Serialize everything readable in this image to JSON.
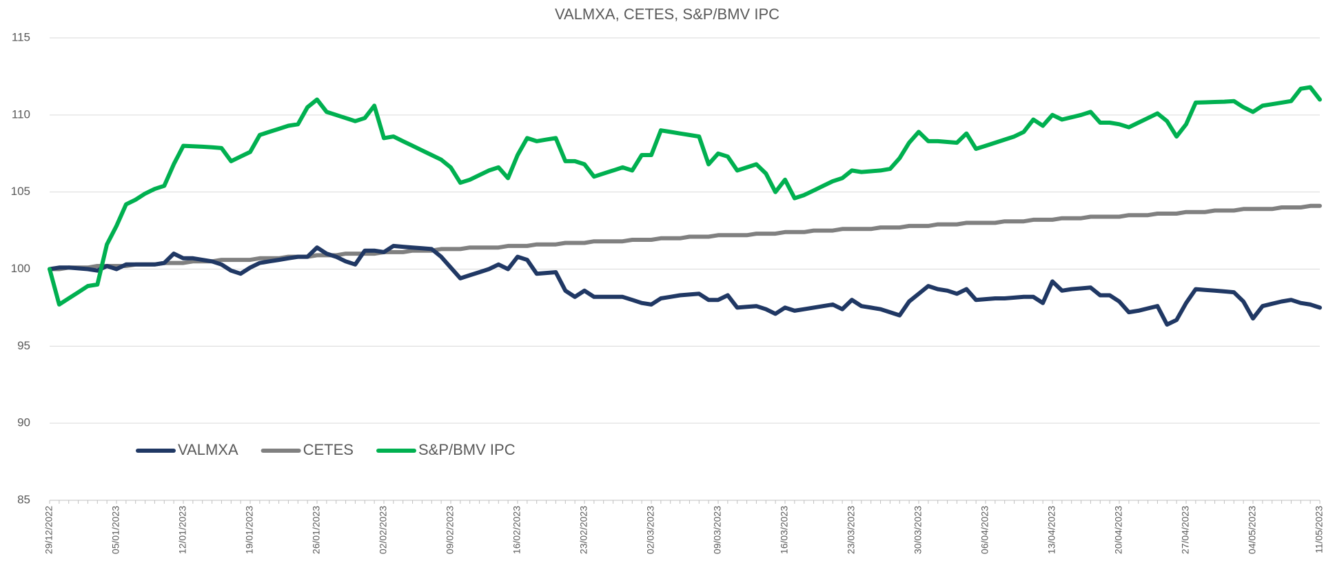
{
  "chart_data": {
    "type": "line",
    "title": "VALMXA, CETES, S&P/BMV IPC",
    "categories": [
      "29/12/2022",
      null,
      null,
      null,
      null,
      null,
      null,
      "05/01/2023",
      null,
      null,
      null,
      null,
      null,
      null,
      "12/01/2023",
      null,
      null,
      null,
      null,
      null,
      null,
      "19/01/2023",
      null,
      null,
      null,
      null,
      null,
      null,
      "26/01/2023",
      null,
      null,
      null,
      null,
      null,
      null,
      "02/02/2023",
      null,
      null,
      null,
      null,
      null,
      null,
      "09/02/2023",
      null,
      null,
      null,
      null,
      null,
      null,
      "16/02/2023",
      null,
      null,
      null,
      null,
      null,
      null,
      "23/02/2023",
      null,
      null,
      null,
      null,
      null,
      null,
      "02/03/2023",
      null,
      null,
      null,
      null,
      null,
      null,
      "09/03/2023",
      null,
      null,
      null,
      null,
      null,
      null,
      "16/03/2023",
      null,
      null,
      null,
      null,
      null,
      null,
      "23/03/2023",
      null,
      null,
      null,
      null,
      null,
      null,
      "30/03/2023",
      null,
      null,
      null,
      null,
      null,
      null,
      "06/04/2023",
      null,
      null,
      null,
      null,
      null,
      null,
      "13/04/2023",
      null,
      null,
      null,
      null,
      null,
      null,
      "20/04/2023",
      null,
      null,
      null,
      null,
      null,
      null,
      "27/04/2023",
      null,
      null,
      null,
      null,
      null,
      null,
      "04/05/2023",
      null,
      null,
      null,
      null,
      null,
      null,
      "11/05/2023"
    ],
    "series": [
      {
        "name": "VALMXA",
        "color": "#203864",
        "values": [
          100,
          100.1,
          100.1,
          100.05,
          100.0,
          99.9,
          100.2,
          100.0,
          100.3,
          100.3,
          100.3,
          100.3,
          100.4,
          101.0,
          100.7,
          100.7,
          100.6,
          100.5,
          100.3,
          99.9,
          99.7,
          100.1,
          100.4,
          100.5,
          100.6,
          100.7,
          100.8,
          100.8,
          101.4,
          101.0,
          100.8,
          100.5,
          100.3,
          101.2,
          101.2,
          101.1,
          101.5,
          101.45,
          101.4,
          101.35,
          101.3,
          100.8,
          100.1,
          99.4,
          99.6,
          99.8,
          100.0,
          100.3,
          100.0,
          100.8,
          100.6,
          99.7,
          99.75,
          99.8,
          98.6,
          98.2,
          98.6,
          98.2,
          98.2,
          98.2,
          98.2,
          98.0,
          97.8,
          97.7,
          98.1,
          98.2,
          98.3,
          98.35,
          98.4,
          98.0,
          98.0,
          98.3,
          97.5,
          97.55,
          97.6,
          97.4,
          97.1,
          97.5,
          97.3,
          97.4,
          97.5,
          97.6,
          97.7,
          97.4,
          98.0,
          97.6,
          97.5,
          97.4,
          97.2,
          97.0,
          97.9,
          98.4,
          98.9,
          98.7,
          98.6,
          98.4,
          98.7,
          98.0,
          98.05,
          98.1,
          98.1,
          98.15,
          98.2,
          98.2,
          97.8,
          99.2,
          98.6,
          98.7,
          98.75,
          98.8,
          98.3,
          98.3,
          97.9,
          97.2,
          97.3,
          97.45,
          97.6,
          96.4,
          96.7,
          97.8,
          98.7,
          98.65,
          98.6,
          98.55,
          98.5,
          97.9,
          96.8,
          97.6,
          97.75,
          97.9,
          98.0,
          97.8,
          97.7,
          97.5
        ]
      },
      {
        "name": "CETES",
        "color": "#808080",
        "values": [
          100.0,
          100.0,
          100.1,
          100.1,
          100.1,
          100.2,
          100.2,
          100.2,
          100.2,
          100.3,
          100.3,
          100.3,
          100.4,
          100.4,
          100.4,
          100.5,
          100.5,
          100.5,
          100.6,
          100.6,
          100.6,
          100.6,
          100.7,
          100.7,
          100.7,
          100.8,
          100.8,
          100.8,
          100.9,
          100.9,
          100.9,
          101.0,
          101.0,
          101.0,
          101.0,
          101.1,
          101.1,
          101.1,
          101.2,
          101.2,
          101.2,
          101.3,
          101.3,
          101.3,
          101.4,
          101.4,
          101.4,
          101.4,
          101.5,
          101.5,
          101.5,
          101.6,
          101.6,
          101.6,
          101.7,
          101.7,
          101.7,
          101.8,
          101.8,
          101.8,
          101.8,
          101.9,
          101.9,
          101.9,
          102.0,
          102.0,
          102.0,
          102.1,
          102.1,
          102.1,
          102.2,
          102.2,
          102.2,
          102.2,
          102.3,
          102.3,
          102.3,
          102.4,
          102.4,
          102.4,
          102.5,
          102.5,
          102.5,
          102.6,
          102.6,
          102.6,
          102.6,
          102.7,
          102.7,
          102.7,
          102.8,
          102.8,
          102.8,
          102.9,
          102.9,
          102.9,
          103.0,
          103.0,
          103.0,
          103.0,
          103.1,
          103.1,
          103.1,
          103.2,
          103.2,
          103.2,
          103.3,
          103.3,
          103.3,
          103.4,
          103.4,
          103.4,
          103.4,
          103.5,
          103.5,
          103.5,
          103.6,
          103.6,
          103.6,
          103.7,
          103.7,
          103.7,
          103.8,
          103.8,
          103.8,
          103.9,
          103.9,
          103.9,
          103.9,
          104.0,
          104.0,
          104.0,
          104.1,
          104.1
        ]
      },
      {
        "name": "S&P/BMV IPC",
        "color": "#00b050",
        "values": [
          100,
          97.7,
          98.1,
          98.5,
          98.9,
          99.0,
          101.6,
          102.8,
          104.2,
          104.5,
          104.9,
          105.2,
          105.4,
          106.8,
          108.0,
          107.97,
          107.94,
          107.9,
          107.85,
          107.0,
          107.3,
          107.6,
          108.7,
          108.9,
          109.1,
          109.3,
          109.4,
          110.5,
          111.0,
          110.2,
          110.0,
          109.8,
          109.6,
          109.8,
          110.6,
          108.5,
          108.6,
          108.3,
          108.0,
          107.7,
          107.4,
          107.1,
          106.6,
          105.6,
          105.8,
          106.1,
          106.4,
          106.6,
          105.9,
          107.4,
          108.5,
          108.3,
          108.4,
          108.5,
          107.0,
          107.0,
          106.8,
          106.0,
          106.2,
          106.4,
          106.6,
          106.4,
          107.4,
          107.4,
          109.0,
          108.9,
          108.8,
          108.7,
          108.6,
          106.8,
          107.5,
          107.3,
          106.4,
          106.6,
          106.8,
          106.2,
          105.0,
          105.8,
          104.6,
          104.8,
          105.1,
          105.4,
          105.7,
          105.9,
          106.4,
          106.3,
          106.35,
          106.4,
          106.5,
          107.2,
          108.2,
          108.9,
          108.3,
          108.3,
          108.25,
          108.2,
          108.8,
          107.8,
          108.0,
          108.2,
          108.4,
          108.6,
          108.9,
          109.7,
          109.3,
          110.0,
          109.7,
          109.85,
          110.0,
          110.2,
          109.5,
          109.5,
          109.4,
          109.2,
          109.5,
          109.8,
          110.1,
          109.6,
          108.6,
          109.4,
          110.8,
          110.82,
          110.84,
          110.86,
          110.9,
          110.5,
          110.2,
          110.6,
          110.7,
          110.8,
          110.9,
          111.7,
          111.8,
          111.0
        ]
      }
    ],
    "ylim": [
      85,
      115
    ],
    "yticks": [
      85,
      90,
      95,
      100,
      105,
      110,
      115
    ],
    "grid": true,
    "legend": "inside-bottom-left"
  }
}
